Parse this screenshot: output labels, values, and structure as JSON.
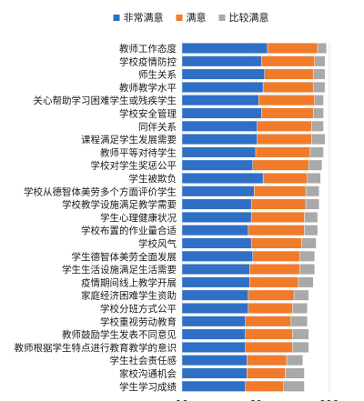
{
  "chart_data": {
    "type": "bar",
    "orientation": "horizontal",
    "stacked": true,
    "grid": true,
    "legend_position": "top",
    "xlim": [
      10,
      110
    ],
    "xticks": [
      10,
      60,
      110
    ],
    "categories": [
      "教师工作态度",
      "学校疫情防控",
      "师生关系",
      "教师教学水平",
      "关心帮助学习困难学生或残疾学生",
      "学校安全管理",
      "同伴关系",
      "课程满足学生发展需要",
      "教师平等对待学生",
      "学校对学生奖惩公平",
      "学生被欺负",
      "学校从德智体美劳多个方面评价学生",
      "学校教学设施满足教学需要",
      "学生心理健康状况",
      "学校布置的作业量合适",
      "学校风气",
      "学生德智体美劳全面发展",
      "学生生活设施满足生活需要",
      "疫情期间线上教学开展",
      "家庭经济困难学生资助",
      "学校分班方式公平",
      "学校重视劳动教育",
      "教师鼓励学生发表不同意见",
      "教师根据学生特点进行教育教学的意识",
      "学生社会责任感",
      "家校沟通机会",
      "学生学习成绩"
    ],
    "series": [
      {
        "name": "非常满意",
        "color": "#2f6fc6",
        "values": [
          58,
          54,
          56,
          55,
          52,
          54,
          51,
          51,
          50,
          48,
          55,
          49,
          47,
          47,
          45,
          47,
          48,
          46,
          46,
          45,
          45,
          43,
          43,
          43,
          44,
          44,
          43
        ]
      },
      {
        "name": "满意",
        "color": "#f07b2a",
        "values": [
          34,
          36,
          33,
          34,
          38,
          35,
          37,
          37,
          37,
          38,
          30,
          35,
          37,
          36,
          38,
          34,
          32,
          34,
          33,
          31,
          30,
          31,
          32,
          32,
          27,
          26,
          26
        ]
      },
      {
        "name": "比较满意",
        "color": "#a9a9a9",
        "values": [
          6,
          7,
          8,
          8,
          6,
          7,
          8,
          9,
          9,
          9,
          9,
          9,
          9,
          9,
          9,
          10,
          10,
          10,
          10,
          10,
          10,
          11,
          11,
          11,
          11,
          13,
          14
        ]
      }
    ]
  }
}
